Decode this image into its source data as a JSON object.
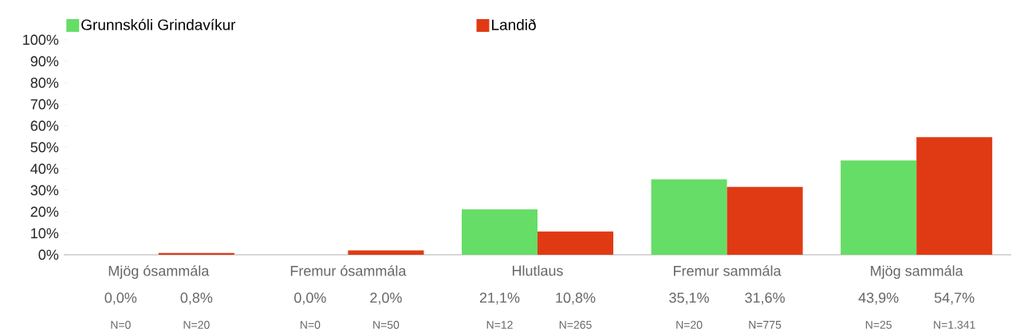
{
  "chart_data": {
    "type": "bar",
    "categories": [
      "Mjög ósammála",
      "Fremur ósammála",
      "Hlutlaus",
      "Fremur sammála",
      "Mjög sammála"
    ],
    "series": [
      {
        "name": "Grunnskóli Grindavíkur",
        "color": "#66dd66",
        "values": [
          0.0,
          0.0,
          21.1,
          35.1,
          43.9
        ],
        "value_labels": [
          "0,0%",
          "0,0%",
          "21,1%",
          "35,1%",
          "43,9%"
        ]
      },
      {
        "name": "Landið",
        "color": "#e03a14",
        "values": [
          0.8,
          2.0,
          10.8,
          31.6,
          54.7
        ],
        "value_labels": [
          "0,8%",
          "2,0%",
          "10,8%",
          "31,6%",
          "54,7%"
        ]
      }
    ],
    "ylim": [
      0,
      100
    ],
    "yticks": [
      {
        "value": 0,
        "label": "0%"
      },
      {
        "value": 10,
        "label": "10%"
      },
      {
        "value": 20,
        "label": "20%"
      },
      {
        "value": 30,
        "label": "30%"
      },
      {
        "value": 40,
        "label": "40%"
      },
      {
        "value": 50,
        "label": "50%"
      },
      {
        "value": 60,
        "label": "60%"
      },
      {
        "value": 70,
        "label": "70%"
      },
      {
        "value": 80,
        "label": "80%"
      },
      {
        "value": 90,
        "label": "90%"
      },
      {
        "value": 100,
        "label": "100%"
      }
    ],
    "annotations": [
      "N=0",
      "N=20",
      "N=0",
      "N=50",
      "N=12",
      "N=265",
      "N=20",
      "N=775",
      "N=25",
      "N=1.341"
    ],
    "legend": "top",
    "grid": false
  }
}
